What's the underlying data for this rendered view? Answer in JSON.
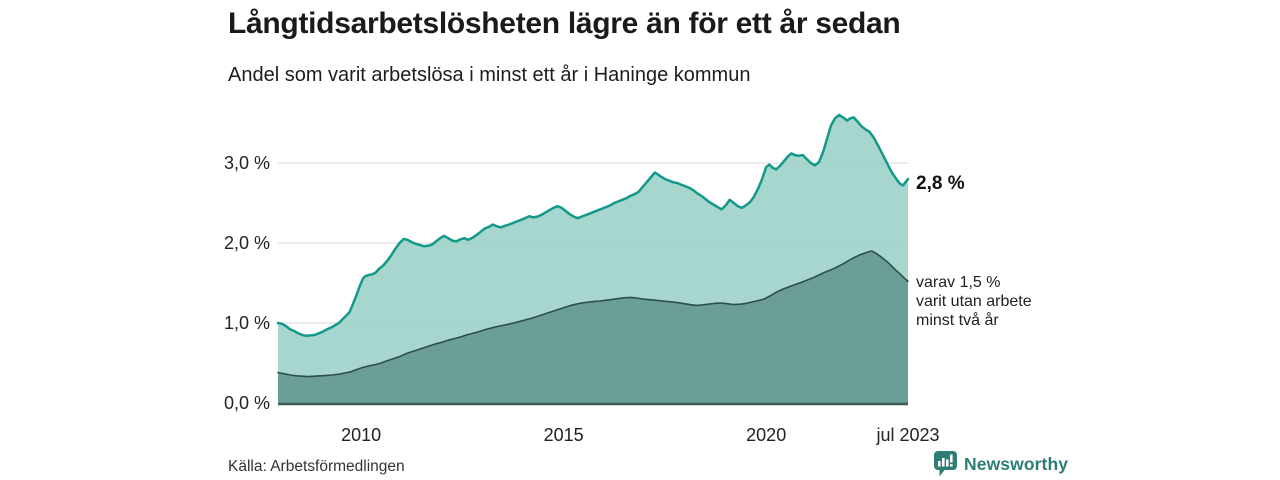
{
  "branding": {
    "logo_text": "Newsworthy",
    "logo_icon": "newsworthy-chart-bubble-icon",
    "logo_color": "#2e7d75"
  },
  "chart_data": {
    "type": "area",
    "title": "Långtidsarbetslösheten lägre än för ett år sedan",
    "subtitle": "Andel som varit arbetslösa i minst ett år i Haninge kommun",
    "source": "Källa: Arbetsförmedlingen",
    "unit": "%",
    "grid": "horizontal-only",
    "legend_position": "none",
    "colors": {
      "gridline": "#d8d8d8",
      "baseline": "#3a5b54",
      "series1_fill": "#98cfc6",
      "series1_stroke": "#12998a",
      "series2_fill": "#5f948d",
      "series2_stroke": "#2d4f49"
    },
    "x_axis": {
      "min": 2007.95,
      "max": 2023.5,
      "ticks": [
        {
          "t": 2010,
          "label": "2010"
        },
        {
          "t": 2015,
          "label": "2015"
        },
        {
          "t": 2020,
          "label": "2020"
        },
        {
          "t": 2023.5,
          "label": "jul 2023"
        }
      ]
    },
    "y_axis": {
      "min": 0,
      "max": 3.75,
      "gridlines": [
        {
          "v": 3,
          "label": "3,0 %"
        },
        {
          "v": 2,
          "label": "2,0 %"
        },
        {
          "v": 1,
          "label": "1,0 %"
        },
        {
          "v": 0,
          "label": "0,0 %"
        }
      ]
    },
    "series": [
      {
        "name": "Andel arbetslösa minst ett år",
        "fill": "#98cfc6",
        "stroke": "#12998a",
        "stroke_width": 2.5,
        "latest_value": 2.8,
        "latest_label": "2,8 %",
        "points": [
          [
            2007.95,
            1.0
          ],
          [
            2008.05,
            0.99
          ],
          [
            2008.15,
            0.96
          ],
          [
            2008.25,
            0.92
          ],
          [
            2008.35,
            0.9
          ],
          [
            2008.45,
            0.87
          ],
          [
            2008.55,
            0.85
          ],
          [
            2008.65,
            0.84
          ],
          [
            2008.75,
            0.845
          ],
          [
            2008.85,
            0.85
          ],
          [
            2008.95,
            0.87
          ],
          [
            2009.05,
            0.89
          ],
          [
            2009.15,
            0.92
          ],
          [
            2009.25,
            0.94
          ],
          [
            2009.35,
            0.97
          ],
          [
            2009.45,
            1.0
          ],
          [
            2009.55,
            1.05
          ],
          [
            2009.65,
            1.1
          ],
          [
            2009.72,
            1.14
          ],
          [
            2009.8,
            1.24
          ],
          [
            2009.88,
            1.34
          ],
          [
            2009.96,
            1.45
          ],
          [
            2010.05,
            1.56
          ],
          [
            2010.12,
            1.59
          ],
          [
            2010.2,
            1.6
          ],
          [
            2010.28,
            1.61
          ],
          [
            2010.36,
            1.63
          ],
          [
            2010.45,
            1.68
          ],
          [
            2010.55,
            1.72
          ],
          [
            2010.65,
            1.78
          ],
          [
            2010.75,
            1.85
          ],
          [
            2010.85,
            1.93
          ],
          [
            2010.95,
            2.0
          ],
          [
            2011.05,
            2.05
          ],
          [
            2011.15,
            2.04
          ],
          [
            2011.25,
            2.01
          ],
          [
            2011.35,
            1.99
          ],
          [
            2011.45,
            1.975
          ],
          [
            2011.55,
            1.96
          ],
          [
            2011.65,
            1.965
          ],
          [
            2011.75,
            1.98
          ],
          [
            2011.85,
            2.02
          ],
          [
            2011.95,
            2.06
          ],
          [
            2012.05,
            2.09
          ],
          [
            2012.15,
            2.06
          ],
          [
            2012.25,
            2.03
          ],
          [
            2012.35,
            2.02
          ],
          [
            2012.45,
            2.045
          ],
          [
            2012.55,
            2.06
          ],
          [
            2012.65,
            2.04
          ],
          [
            2012.75,
            2.065
          ],
          [
            2012.85,
            2.1
          ],
          [
            2012.95,
            2.14
          ],
          [
            2013.05,
            2.18
          ],
          [
            2013.15,
            2.2
          ],
          [
            2013.25,
            2.23
          ],
          [
            2013.35,
            2.21
          ],
          [
            2013.45,
            2.195
          ],
          [
            2013.55,
            2.215
          ],
          [
            2013.65,
            2.23
          ],
          [
            2013.75,
            2.25
          ],
          [
            2013.85,
            2.27
          ],
          [
            2013.95,
            2.29
          ],
          [
            2014.05,
            2.31
          ],
          [
            2014.15,
            2.335
          ],
          [
            2014.25,
            2.32
          ],
          [
            2014.35,
            2.33
          ],
          [
            2014.45,
            2.35
          ],
          [
            2014.55,
            2.38
          ],
          [
            2014.65,
            2.41
          ],
          [
            2014.75,
            2.44
          ],
          [
            2014.85,
            2.46
          ],
          [
            2014.95,
            2.44
          ],
          [
            2015.05,
            2.4
          ],
          [
            2015.15,
            2.36
          ],
          [
            2015.25,
            2.33
          ],
          [
            2015.35,
            2.31
          ],
          [
            2015.45,
            2.33
          ],
          [
            2015.55,
            2.35
          ],
          [
            2015.65,
            2.37
          ],
          [
            2015.75,
            2.39
          ],
          [
            2015.85,
            2.41
          ],
          [
            2015.95,
            2.43
          ],
          [
            2016.05,
            2.45
          ],
          [
            2016.15,
            2.47
          ],
          [
            2016.25,
            2.5
          ],
          [
            2016.35,
            2.52
          ],
          [
            2016.45,
            2.54
          ],
          [
            2016.55,
            2.56
          ],
          [
            2016.65,
            2.59
          ],
          [
            2016.75,
            2.61
          ],
          [
            2016.85,
            2.64
          ],
          [
            2016.95,
            2.7
          ],
          [
            2017.05,
            2.76
          ],
          [
            2017.15,
            2.82
          ],
          [
            2017.25,
            2.88
          ],
          [
            2017.32,
            2.86
          ],
          [
            2017.4,
            2.83
          ],
          [
            2017.5,
            2.8
          ],
          [
            2017.6,
            2.78
          ],
          [
            2017.7,
            2.76
          ],
          [
            2017.8,
            2.75
          ],
          [
            2017.9,
            2.73
          ],
          [
            2018.0,
            2.71
          ],
          [
            2018.1,
            2.69
          ],
          [
            2018.2,
            2.66
          ],
          [
            2018.3,
            2.62
          ],
          [
            2018.4,
            2.59
          ],
          [
            2018.5,
            2.55
          ],
          [
            2018.6,
            2.51
          ],
          [
            2018.7,
            2.48
          ],
          [
            2018.8,
            2.45
          ],
          [
            2018.9,
            2.42
          ],
          [
            2019.0,
            2.47
          ],
          [
            2019.1,
            2.54
          ],
          [
            2019.2,
            2.5
          ],
          [
            2019.3,
            2.46
          ],
          [
            2019.4,
            2.44
          ],
          [
            2019.5,
            2.47
          ],
          [
            2019.6,
            2.51
          ],
          [
            2019.7,
            2.58
          ],
          [
            2019.8,
            2.68
          ],
          [
            2019.9,
            2.8
          ],
          [
            2020.0,
            2.95
          ],
          [
            2020.08,
            2.98
          ],
          [
            2020.16,
            2.94
          ],
          [
            2020.25,
            2.92
          ],
          [
            2020.35,
            2.97
          ],
          [
            2020.45,
            3.03
          ],
          [
            2020.55,
            3.09
          ],
          [
            2020.62,
            3.12
          ],
          [
            2020.7,
            3.1
          ],
          [
            2020.8,
            3.09
          ],
          [
            2020.9,
            3.1
          ],
          [
            2021.0,
            3.05
          ],
          [
            2021.1,
            3.0
          ],
          [
            2021.2,
            2.97
          ],
          [
            2021.3,
            3.01
          ],
          [
            2021.4,
            3.13
          ],
          [
            2021.5,
            3.3
          ],
          [
            2021.6,
            3.47
          ],
          [
            2021.7,
            3.56
          ],
          [
            2021.8,
            3.6
          ],
          [
            2021.9,
            3.57
          ],
          [
            2022.0,
            3.53
          ],
          [
            2022.08,
            3.56
          ],
          [
            2022.16,
            3.57
          ],
          [
            2022.25,
            3.52
          ],
          [
            2022.35,
            3.46
          ],
          [
            2022.45,
            3.42
          ],
          [
            2022.55,
            3.39
          ],
          [
            2022.65,
            3.32
          ],
          [
            2022.75,
            3.23
          ],
          [
            2022.85,
            3.13
          ],
          [
            2022.95,
            3.03
          ],
          [
            2023.05,
            2.93
          ],
          [
            2023.13,
            2.86
          ],
          [
            2023.2,
            2.81
          ],
          [
            2023.3,
            2.74
          ],
          [
            2023.38,
            2.72
          ],
          [
            2023.44,
            2.76
          ],
          [
            2023.5,
            2.8
          ]
        ]
      },
      {
        "name": "Varav utan arbete minst två år",
        "fill": "#5f948d",
        "stroke": "#2d4f49",
        "stroke_width": 1.6,
        "latest_value": 1.5,
        "latest_label": "varav 1,5 %\nvarit utan arbete\nminst två år",
        "points": [
          [
            2007.95,
            0.38
          ],
          [
            2008.1,
            0.365
          ],
          [
            2008.25,
            0.35
          ],
          [
            2008.4,
            0.34
          ],
          [
            2008.55,
            0.335
          ],
          [
            2008.7,
            0.33
          ],
          [
            2008.85,
            0.335
          ],
          [
            2009.0,
            0.34
          ],
          [
            2009.15,
            0.345
          ],
          [
            2009.3,
            0.35
          ],
          [
            2009.45,
            0.36
          ],
          [
            2009.6,
            0.375
          ],
          [
            2009.75,
            0.39
          ],
          [
            2009.9,
            0.42
          ],
          [
            2010.05,
            0.445
          ],
          [
            2010.2,
            0.465
          ],
          [
            2010.35,
            0.48
          ],
          [
            2010.5,
            0.5
          ],
          [
            2010.65,
            0.53
          ],
          [
            2010.8,
            0.555
          ],
          [
            2010.95,
            0.58
          ],
          [
            2011.1,
            0.615
          ],
          [
            2011.25,
            0.64
          ],
          [
            2011.4,
            0.665
          ],
          [
            2011.55,
            0.69
          ],
          [
            2011.7,
            0.715
          ],
          [
            2011.85,
            0.74
          ],
          [
            2012.0,
            0.76
          ],
          [
            2012.15,
            0.785
          ],
          [
            2012.3,
            0.805
          ],
          [
            2012.45,
            0.825
          ],
          [
            2012.6,
            0.85
          ],
          [
            2012.75,
            0.87
          ],
          [
            2012.9,
            0.89
          ],
          [
            2013.05,
            0.915
          ],
          [
            2013.2,
            0.935
          ],
          [
            2013.35,
            0.955
          ],
          [
            2013.5,
            0.97
          ],
          [
            2013.65,
            0.985
          ],
          [
            2013.8,
            1.005
          ],
          [
            2013.95,
            1.025
          ],
          [
            2014.1,
            1.045
          ],
          [
            2014.25,
            1.065
          ],
          [
            2014.4,
            1.09
          ],
          [
            2014.55,
            1.115
          ],
          [
            2014.7,
            1.14
          ],
          [
            2014.85,
            1.165
          ],
          [
            2015.0,
            1.19
          ],
          [
            2015.15,
            1.215
          ],
          [
            2015.3,
            1.235
          ],
          [
            2015.45,
            1.25
          ],
          [
            2015.6,
            1.26
          ],
          [
            2015.75,
            1.27
          ],
          [
            2015.9,
            1.275
          ],
          [
            2016.05,
            1.285
          ],
          [
            2016.2,
            1.295
          ],
          [
            2016.35,
            1.305
          ],
          [
            2016.5,
            1.315
          ],
          [
            2016.65,
            1.32
          ],
          [
            2016.8,
            1.312
          ],
          [
            2016.95,
            1.3
          ],
          [
            2017.1,
            1.293
          ],
          [
            2017.25,
            1.285
          ],
          [
            2017.4,
            1.278
          ],
          [
            2017.55,
            1.27
          ],
          [
            2017.7,
            1.262
          ],
          [
            2017.85,
            1.252
          ],
          [
            2018.0,
            1.24
          ],
          [
            2018.15,
            1.228
          ],
          [
            2018.3,
            1.22
          ],
          [
            2018.45,
            1.228
          ],
          [
            2018.6,
            1.238
          ],
          [
            2018.75,
            1.246
          ],
          [
            2018.9,
            1.25
          ],
          [
            2019.05,
            1.24
          ],
          [
            2019.2,
            1.23
          ],
          [
            2019.35,
            1.235
          ],
          [
            2019.5,
            1.245
          ],
          [
            2019.65,
            1.262
          ],
          [
            2019.8,
            1.28
          ],
          [
            2019.95,
            1.3
          ],
          [
            2020.1,
            1.34
          ],
          [
            2020.25,
            1.385
          ],
          [
            2020.4,
            1.42
          ],
          [
            2020.55,
            1.45
          ],
          [
            2020.7,
            1.478
          ],
          [
            2020.85,
            1.505
          ],
          [
            2021.0,
            1.535
          ],
          [
            2021.15,
            1.565
          ],
          [
            2021.3,
            1.6
          ],
          [
            2021.45,
            1.635
          ],
          [
            2021.6,
            1.665
          ],
          [
            2021.75,
            1.7
          ],
          [
            2021.9,
            1.74
          ],
          [
            2022.05,
            1.785
          ],
          [
            2022.2,
            1.825
          ],
          [
            2022.35,
            1.86
          ],
          [
            2022.5,
            1.885
          ],
          [
            2022.6,
            1.9
          ],
          [
            2022.7,
            1.875
          ],
          [
            2022.8,
            1.84
          ],
          [
            2022.9,
            1.8
          ],
          [
            2023.0,
            1.76
          ],
          [
            2023.1,
            1.71
          ],
          [
            2023.2,
            1.66
          ],
          [
            2023.3,
            1.615
          ],
          [
            2023.4,
            1.565
          ],
          [
            2023.5,
            1.52
          ]
        ]
      }
    ]
  }
}
